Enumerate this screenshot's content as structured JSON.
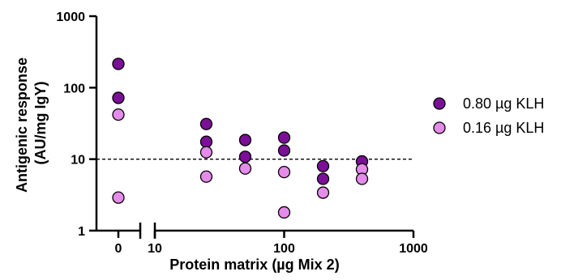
{
  "chart_data": {
    "type": "scatter",
    "xlabel": "Protein matrix (µg Mix 2)",
    "ylabel_lines": [
      "Antigenic response",
      "(AU/mg IgY)"
    ],
    "y_scale": "log",
    "ylim": [
      1,
      1000
    ],
    "y_ticks": [
      "1",
      "10",
      "100",
      "1000"
    ],
    "x_segments": [
      {
        "scale": "category",
        "ticks": [
          "0"
        ]
      },
      {
        "scale": "log",
        "range": [
          10,
          1000
        ],
        "ticks": [
          "10",
          "100",
          "1000"
        ]
      }
    ],
    "reference_line": {
      "y": 10,
      "style": "dashed"
    },
    "legend_position": "right",
    "series": [
      {
        "name": "0.80 µg KLH",
        "color": "#7B0F97",
        "points": [
          {
            "x": 0,
            "y": 215
          },
          {
            "x": 0,
            "y": 72
          },
          {
            "x": 25,
            "y": 31
          },
          {
            "x": 25,
            "y": 17.5
          },
          {
            "x": 50,
            "y": 18.5
          },
          {
            "x": 50,
            "y": 10.8
          },
          {
            "x": 100,
            "y": 20
          },
          {
            "x": 100,
            "y": 13.2
          },
          {
            "x": 200,
            "y": 8
          },
          {
            "x": 200,
            "y": 5.3
          },
          {
            "x": 400,
            "y": 9.3
          }
        ]
      },
      {
        "name": "0.16 µg KLH",
        "color": "#E58BEA",
        "points": [
          {
            "x": 0,
            "y": 42
          },
          {
            "x": 0,
            "y": 2.9
          },
          {
            "x": 25,
            "y": 12.5
          },
          {
            "x": 25,
            "y": 5.7
          },
          {
            "x": 50,
            "y": 7.4
          },
          {
            "x": 100,
            "y": 6.6
          },
          {
            "x": 100,
            "y": 1.8
          },
          {
            "x": 200,
            "y": 3.4
          },
          {
            "x": 400,
            "y": 7.2
          },
          {
            "x": 400,
            "y": 5.3
          }
        ]
      }
    ]
  }
}
